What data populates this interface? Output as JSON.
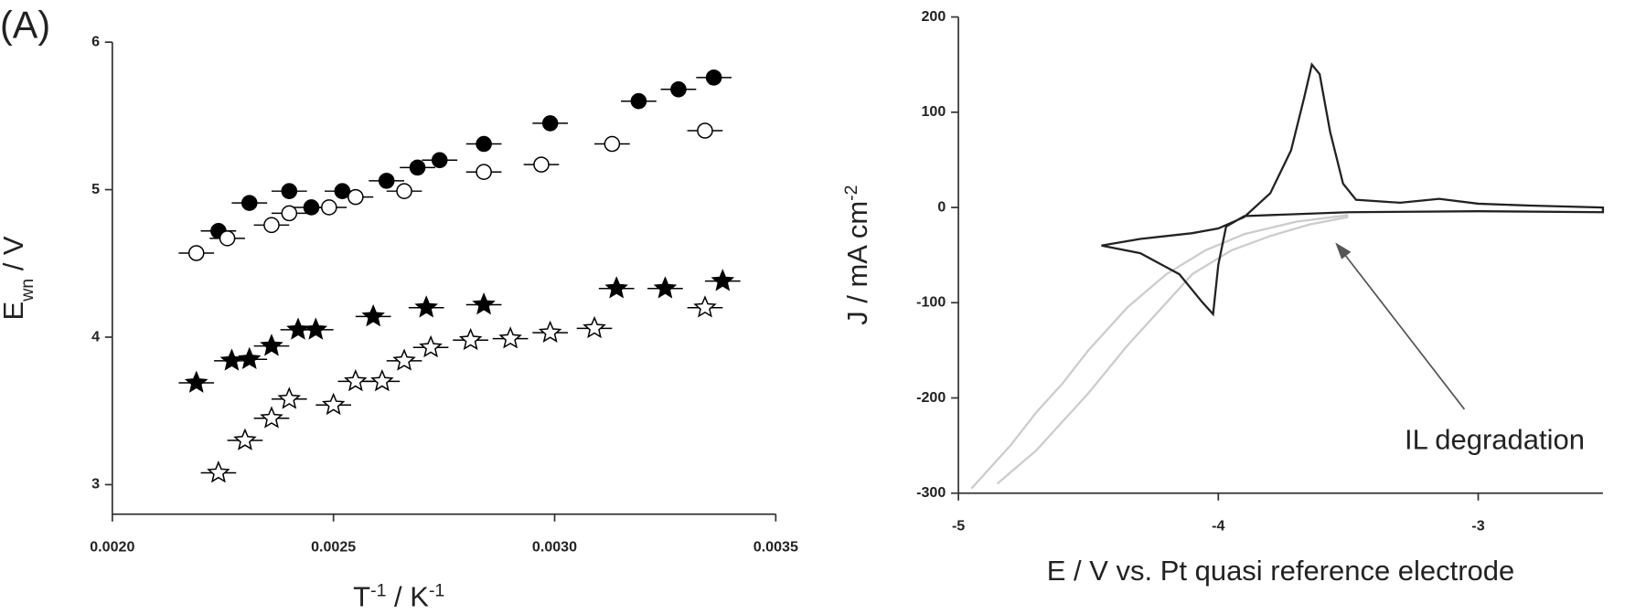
{
  "chart_data": [
    {
      "type": "scatter",
      "panel_label": "(A)",
      "xlabel": [
        {
          "text": "T"
        },
        {
          "text": "-1",
          "sup": true
        },
        {
          "text": " / K"
        },
        {
          "text": "-1",
          "sup": true
        }
      ],
      "ylabel": [
        {
          "text": "E"
        },
        {
          "text": "wn",
          "sub": true
        },
        {
          "text": " / V"
        }
      ],
      "xlim": [
        0.002,
        0.0035
      ],
      "ylim": [
        2.8,
        6
      ],
      "xticks": [
        {
          "value": 0.002,
          "label": "0.0020"
        },
        {
          "value": 0.0025,
          "label": "0.0025"
        },
        {
          "value": 0.003,
          "label": "0.0030"
        },
        {
          "value": 0.0035,
          "label": "0.0035"
        }
      ],
      "yticks": [
        3,
        4,
        5,
        6
      ],
      "series": [
        {
          "marker": "circle",
          "filled": true,
          "color": "#000000",
          "xerr": 4e-05,
          "x": [
            0.00224,
            0.00231,
            0.0024,
            0.00245,
            0.00252,
            0.00262,
            0.00269,
            0.00274,
            0.00284,
            0.00299,
            0.00319,
            0.00328,
            0.00336
          ],
          "values": [
            4.72,
            4.91,
            4.99,
            4.88,
            4.99,
            5.06,
            5.15,
            5.2,
            5.31,
            5.45,
            5.6,
            5.68,
            5.76
          ]
        },
        {
          "marker": "circle",
          "filled": false,
          "color": "#000000",
          "xerr": 4e-05,
          "x": [
            0.00219,
            0.00226,
            0.00236,
            0.0024,
            0.00249,
            0.00255,
            0.00266,
            0.00284,
            0.00297,
            0.00313,
            0.00334
          ],
          "values": [
            4.57,
            4.67,
            4.76,
            4.84,
            4.88,
            4.95,
            4.99,
            5.12,
            5.17,
            5.31,
            5.4
          ]
        },
        {
          "marker": "star",
          "filled": true,
          "color": "#000000",
          "xerr": 4e-05,
          "x": [
            0.00219,
            0.00227,
            0.00231,
            0.00236,
            0.00242,
            0.00246,
            0.00259,
            0.00271,
            0.00284,
            0.00314,
            0.00325,
            0.00338
          ],
          "values": [
            3.69,
            3.84,
            3.85,
            3.94,
            4.05,
            4.05,
            4.14,
            4.2,
            4.22,
            4.33,
            4.33,
            4.38
          ]
        },
        {
          "marker": "star",
          "filled": false,
          "color": "#000000",
          "xerr": 4e-05,
          "x": [
            0.00224,
            0.0023,
            0.00236,
            0.0024,
            0.0025,
            0.00255,
            0.00261,
            0.00266,
            0.00272,
            0.00281,
            0.0029,
            0.00299,
            0.00309,
            0.00334
          ],
          "values": [
            3.08,
            3.3,
            3.45,
            3.58,
            3.54,
            3.7,
            3.7,
            3.84,
            3.93,
            3.98,
            3.99,
            4.03,
            4.06,
            4.2
          ]
        }
      ]
    },
    {
      "type": "line",
      "xlabel": [
        {
          "text": "E / V vs. Pt quasi reference electrode"
        }
      ],
      "ylabel": [
        {
          "text": "J / mA cm"
        },
        {
          "text": "-2",
          "sup": true
        }
      ],
      "annotation": "IL degradation",
      "xlim": [
        -5,
        -2.52
      ],
      "ylim": [
        -300,
        200
      ],
      "xticks": [
        -5,
        -4,
        -3
      ],
      "yticks": [
        200,
        100,
        0,
        -100,
        -200,
        -300
      ],
      "series": [
        {
          "color": "#cccccc",
          "x": [
            -4.95,
            -4.8,
            -4.7,
            -4.6,
            -4.5,
            -4.35,
            -4.2,
            -4.05,
            -3.9,
            -3.7,
            -3.5
          ],
          "values": [
            -295,
            -250,
            -215,
            -185,
            -150,
            -105,
            -70,
            -45,
            -28,
            -15,
            -8
          ]
        },
        {
          "color": "#cccccc",
          "x": [
            -4.85,
            -4.7,
            -4.6,
            -4.5,
            -4.35,
            -4.2,
            -4.1,
            -3.95,
            -3.8,
            -3.65,
            -3.5
          ],
          "values": [
            -290,
            -255,
            -225,
            -195,
            -145,
            -100,
            -70,
            -45,
            -30,
            -18,
            -10
          ]
        },
        {
          "color": "#222222",
          "x": [
            -4.45,
            -4.3,
            -4.1,
            -4.0,
            -3.9,
            -3.8,
            -3.72,
            -3.67,
            -3.64,
            -3.61,
            -3.57,
            -3.52,
            -3.47,
            -3.3,
            -3.15,
            -3.0,
            -2.8,
            -2.52,
            -2.52,
            -3.0,
            -3.5,
            -3.9,
            -3.97,
            -4.0,
            -4.02,
            -4.06,
            -4.15,
            -4.3,
            -4.45
          ],
          "values": [
            -40,
            -33,
            -27,
            -22,
            -10,
            15,
            60,
            115,
            150,
            140,
            80,
            25,
            8,
            5,
            9,
            4,
            2,
            0,
            -5,
            -4,
            -5,
            -9,
            -20,
            -60,
            -112,
            -100,
            -70,
            -48,
            -40
          ]
        }
      ]
    }
  ]
}
